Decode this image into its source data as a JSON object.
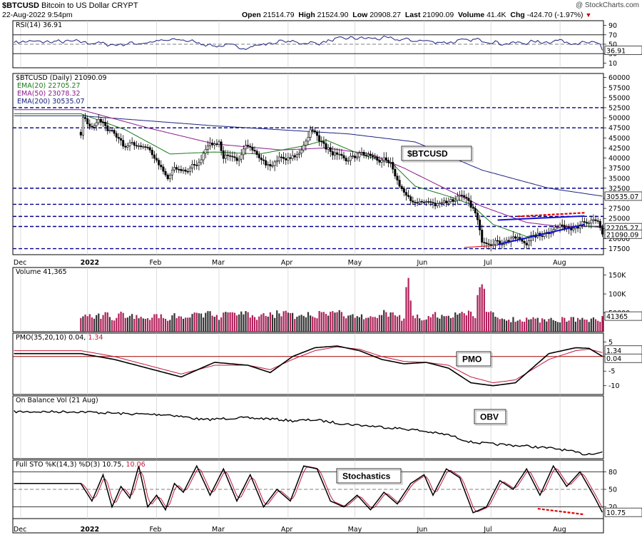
{
  "header": {
    "symbol": "$BTCUSD",
    "name": "Bitcoin to US Dollar",
    "exchange": "CRYPT",
    "datetime": "22-Aug-2022 9:54pm",
    "watermark": "@ StockCharts.com",
    "open_label": "Open",
    "open": "21514.79",
    "high_label": "High",
    "high": "21524.90",
    "low_label": "Low",
    "low": "20908.27",
    "last_label": "Last",
    "last": "21090.09",
    "volume_label": "Volume",
    "volume": "41.4K",
    "chg_label": "Chg",
    "chg": "-424.70 (-1.97%)"
  },
  "colors": {
    "price_up": "#000000",
    "ema20": "#1a7a1a",
    "ema50": "#8b1a8b",
    "ema200": "#1a237e",
    "hline": "#00008b",
    "volume_up": "#333333",
    "volume_down": "#b0205a",
    "pmo": "#000000",
    "signal": "#c0183c",
    "rsi": "#1a237e",
    "wedge": "#1010d0",
    "divergence": "#e00000"
  },
  "chart_data": [
    {
      "panel": "rsi",
      "type": "line",
      "legend": "RSI(14) 36.91",
      "yticks": [
        "90",
        "70",
        "50",
        "30",
        "10"
      ],
      "ylim": [
        0,
        100
      ],
      "reference_lines": [
        70,
        50,
        30
      ],
      "last_label": "36.91",
      "knots": [
        [
          0,
          55
        ],
        [
          15,
          49
        ],
        [
          30,
          54
        ],
        [
          45,
          60
        ],
        [
          60,
          47
        ],
        [
          75,
          44
        ],
        [
          90,
          56
        ],
        [
          105,
          52
        ],
        [
          120,
          63
        ],
        [
          135,
          62
        ],
        [
          150,
          58
        ],
        [
          165,
          54
        ],
        [
          180,
          60
        ],
        [
          190,
          51
        ],
        [
          205,
          55
        ],
        [
          215,
          58
        ],
        [
          225,
          52
        ],
        [
          235,
          50
        ],
        [
          245,
          45
        ],
        [
          255,
          54
        ],
        [
          265,
          49
        ],
        [
          275,
          56
        ],
        [
          288,
          58
        ],
        [
          305,
          54
        ],
        [
          320,
          56
        ],
        [
          330,
          58
        ],
        [
          340,
          55
        ],
        [
          352,
          58
        ],
        [
          358,
          54
        ],
        [
          365,
          62
        ],
        [
          372,
          58
        ],
        [
          380,
          62
        ],
        [
          387,
          56
        ],
        [
          393,
          60
        ],
        [
          400,
          54
        ],
        [
          410,
          52
        ],
        [
          420,
          55
        ]
      ],
      "end_value": 36.91
    },
    {
      "panel": "price",
      "type": "candlestick",
      "legend": "$BTCUSD (Daily) 21090.09",
      "series": [
        {
          "name": "EMA(20) 22705.27",
          "last": 22705.27
        },
        {
          "name": "EMA(50) 23078.32",
          "last": 23078.32
        },
        {
          "name": "EMA(200) 30535.07",
          "last": 30535.07
        }
      ],
      "yticks": [
        "60000",
        "57500",
        "55000",
        "52500",
        "50000",
        "47500",
        "45000",
        "42500",
        "40000",
        "37500",
        "35000",
        "32500",
        "30000",
        "27500",
        "25000",
        "22500",
        "20000",
        "17500"
      ],
      "ylim": [
        16000,
        61000
      ],
      "horizontal_lines": [
        52500,
        47500,
        32500,
        28500,
        25500,
        23000,
        17500
      ],
      "last_labels": [
        "30535.07",
        "22705.27",
        "21090.09"
      ],
      "annotation": "$BTCUSD",
      "knots": [
        [
          0,
          46000
        ],
        [
          1,
          50000
        ],
        [
          5,
          48000
        ],
        [
          8,
          49000
        ],
        [
          14,
          46800
        ],
        [
          20,
          43000
        ],
        [
          25,
          43500
        ],
        [
          30,
          42800
        ],
        [
          35,
          38000
        ],
        [
          39,
          34800
        ],
        [
          42,
          37200
        ],
        [
          48,
          37000
        ],
        [
          53,
          38800
        ],
        [
          56,
          43000
        ],
        [
          62,
          44000
        ],
        [
          64,
          40000
        ],
        [
          70,
          39200
        ],
        [
          74,
          44200
        ],
        [
          80,
          40000
        ],
        [
          85,
          37800
        ],
        [
          87,
          39500
        ],
        [
          96,
          40000
        ],
        [
          100,
          43500
        ],
        [
          103,
          46500
        ],
        [
          106,
          46000
        ],
        [
          110,
          42500
        ],
        [
          115,
          40000
        ],
        [
          120,
          39500
        ],
        [
          125,
          41000
        ],
        [
          131,
          40300
        ],
        [
          136,
          39000
        ],
        [
          139,
          38100
        ],
        [
          146,
          30000
        ],
        [
          152,
          29000
        ],
        [
          160,
          28900
        ],
        [
          170,
          30000
        ],
        [
          174,
          29200
        ],
        [
          177,
          26000
        ],
        [
          179,
          22000
        ],
        [
          180,
          20000
        ],
        [
          184,
          19200
        ],
        [
          186,
          19000
        ],
        [
          195,
          20000
        ],
        [
          200,
          19200
        ],
        [
          204,
          20500
        ],
        [
          210,
          22000
        ],
        [
          215,
          23000
        ],
        [
          222,
          23300
        ],
        [
          227,
          23500
        ],
        [
          232,
          24000
        ],
        [
          234,
          21500
        ]
      ],
      "ema20_knots": [
        [
          0,
          51000
        ],
        [
          20,
          47000
        ],
        [
          40,
          41000
        ],
        [
          60,
          41500
        ],
        [
          80,
          41000
        ],
        [
          100,
          43000
        ],
        [
          110,
          44500
        ],
        [
          125,
          41000
        ],
        [
          140,
          38500
        ],
        [
          150,
          33000
        ],
        [
          165,
          30500
        ],
        [
          175,
          28500
        ],
        [
          185,
          23500
        ],
        [
          200,
          20500
        ],
        [
          215,
          22000
        ],
        [
          225,
          23200
        ],
        [
          234,
          22705
        ]
      ],
      "ema50_knots": [
        [
          0,
          52000
        ],
        [
          30,
          47500
        ],
        [
          60,
          43500
        ],
        [
          90,
          42000
        ],
        [
          110,
          42500
        ],
        [
          130,
          41000
        ],
        [
          145,
          37500
        ],
        [
          165,
          32000
        ],
        [
          180,
          28000
        ],
        [
          200,
          24000
        ],
        [
          215,
          23000
        ],
        [
          234,
          23078
        ]
      ],
      "ema200_knots": [
        [
          0,
          50500
        ],
        [
          60,
          48000
        ],
        [
          120,
          46000
        ],
        [
          150,
          44000
        ],
        [
          180,
          37000
        ],
        [
          210,
          32500
        ],
        [
          234,
          30535
        ]
      ],
      "wedge_upper": [
        [
          187,
          24600
        ],
        [
          226,
          25600
        ]
      ],
      "wedge_lower": [
        [
          187,
          18500
        ],
        [
          226,
          23500
        ]
      ],
      "divergence_line": [
        [
          196,
          25500
        ],
        [
          226,
          26400
        ]
      ],
      "low_line": [
        [
          172,
          17800
        ],
        [
          187,
          18300
        ]
      ]
    },
    {
      "panel": "volume",
      "type": "bar",
      "legend": "Volume 41,365",
      "yticks": [
        "150K",
        "100K",
        "50000"
      ],
      "ylim": [
        0,
        170
      ],
      "last_label": "41365"
    },
    {
      "panel": "pmo",
      "type": "line",
      "legend_main": "PMO(35,20,10) 0.04, ",
      "legend_signal": "1.34",
      "yticks": [
        "5",
        "0",
        "-5",
        "-10"
      ],
      "ylim": [
        -13,
        8
      ],
      "zero_line": 0,
      "last_labels": [
        "1.34",
        "0.04"
      ],
      "annotation": "PMO",
      "knots": [
        [
          0,
          1
        ],
        [
          15,
          -1
        ],
        [
          30,
          -4
        ],
        [
          45,
          -7
        ],
        [
          60,
          -2
        ],
        [
          75,
          -3
        ],
        [
          85,
          -5.5
        ],
        [
          95,
          0
        ],
        [
          105,
          3
        ],
        [
          115,
          3.6
        ],
        [
          125,
          2
        ],
        [
          135,
          -1
        ],
        [
          145,
          -2.5
        ],
        [
          155,
          -2
        ],
        [
          165,
          -4
        ],
        [
          175,
          -9
        ],
        [
          185,
          -10
        ],
        [
          195,
          -9
        ],
        [
          210,
          1
        ],
        [
          222,
          3
        ],
        [
          228,
          2.8
        ],
        [
          234,
          0.04
        ]
      ],
      "signal_knots": [
        [
          0,
          2
        ],
        [
          15,
          0
        ],
        [
          30,
          -3
        ],
        [
          45,
          -6
        ],
        [
          60,
          -3
        ],
        [
          75,
          -3
        ],
        [
          85,
          -4.5
        ],
        [
          95,
          -1
        ],
        [
          105,
          2
        ],
        [
          115,
          3.3
        ],
        [
          125,
          2.5
        ],
        [
          135,
          0
        ],
        [
          145,
          -1.7
        ],
        [
          155,
          -2
        ],
        [
          165,
          -3
        ],
        [
          175,
          -7
        ],
        [
          185,
          -9
        ],
        [
          195,
          -8
        ],
        [
          210,
          -1
        ],
        [
          222,
          2
        ],
        [
          228,
          2.5
        ],
        [
          234,
          1.34
        ]
      ]
    },
    {
      "panel": "obv",
      "type": "line",
      "legend": "On Balance Vol (21 Aug)",
      "annotation": "OBV",
      "knots": [
        [
          0,
          10
        ],
        [
          20,
          12
        ],
        [
          40,
          13
        ],
        [
          55,
          18
        ],
        [
          70,
          16
        ],
        [
          85,
          17
        ],
        [
          95,
          19
        ],
        [
          105,
          18
        ],
        [
          118,
          22
        ],
        [
          135,
          25
        ],
        [
          150,
          28
        ],
        [
          165,
          33
        ],
        [
          175,
          40
        ],
        [
          185,
          42
        ],
        [
          200,
          44
        ],
        [
          215,
          47
        ],
        [
          226,
          52
        ],
        [
          234,
          50
        ]
      ]
    },
    {
      "panel": "stochastic",
      "type": "line",
      "legend_main": "Full STO %K(14,3) %D(3) 10.75, ",
      "legend_signal": "10.06",
      "yticks": [
        "80",
        "50",
        "20"
      ],
      "ylim": [
        0,
        100
      ],
      "reference_lines": [
        80,
        50,
        20
      ],
      "last_label": "10.75",
      "annotation": "Stochastics",
      "knots": [
        [
          0,
          60
        ],
        [
          5,
          30
        ],
        [
          10,
          75
        ],
        [
          14,
          20
        ],
        [
          18,
          55
        ],
        [
          22,
          35
        ],
        [
          26,
          90
        ],
        [
          30,
          20
        ],
        [
          34,
          40
        ],
        [
          38,
          15
        ],
        [
          42,
          60
        ],
        [
          46,
          45
        ],
        [
          52,
          90
        ],
        [
          58,
          40
        ],
        [
          64,
          85
        ],
        [
          70,
          30
        ],
        [
          76,
          75
        ],
        [
          82,
          20
        ],
        [
          88,
          50
        ],
        [
          94,
          30
        ],
        [
          100,
          90
        ],
        [
          106,
          85
        ],
        [
          112,
          30
        ],
        [
          118,
          20
        ],
        [
          124,
          40
        ],
        [
          130,
          15
        ],
        [
          136,
          45
        ],
        [
          142,
          25
        ],
        [
          148,
          60
        ],
        [
          154,
          75
        ],
        [
          158,
          40
        ],
        [
          164,
          85
        ],
        [
          170,
          70
        ],
        [
          176,
          10
        ],
        [
          182,
          20
        ],
        [
          188,
          65
        ],
        [
          194,
          50
        ],
        [
          200,
          85
        ],
        [
          206,
          40
        ],
        [
          212,
          90
        ],
        [
          218,
          55
        ],
        [
          224,
          80
        ],
        [
          230,
          40
        ],
        [
          234,
          10.75
        ]
      ],
      "divergence_line": [
        [
          205,
          17
        ],
        [
          226,
          7
        ]
      ]
    }
  ],
  "x_axis": {
    "labels": [
      {
        "label": "Dec",
        "bold": false,
        "i": 3
      },
      {
        "label": "2022",
        "bold": true,
        "i": 33
      },
      {
        "label": "Feb",
        "bold": false,
        "i": 64
      },
      {
        "label": "Mar",
        "bold": false,
        "i": 92
      },
      {
        "label": "Apr",
        "bold": false,
        "i": 123
      },
      {
        "label": "May",
        "bold": false,
        "i": 153
      },
      {
        "label": "Jun",
        "bold": false,
        "i": 184
      },
      {
        "label": "Jul",
        "bold": false,
        "i": 214
      },
      {
        "label": "Aug",
        "bold": false,
        "i": 245
      }
    ]
  }
}
